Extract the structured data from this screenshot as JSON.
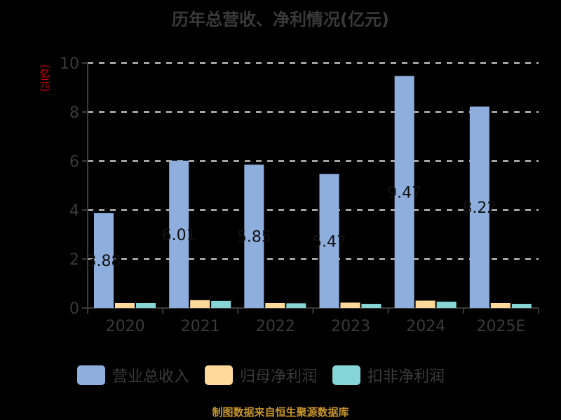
{
  "title": "历年总营收、净利情况(亿元)",
  "unit_label": "(亿元)",
  "source": "制图数据来自恒生聚源数据库",
  "colors": {
    "revenue": "#8eaedd",
    "net_profit": "#ffd99a",
    "deducted_profit": "#86d6d8",
    "grid": "#d0d0d0",
    "axis": "#3a3a3a",
    "label": "#111111"
  },
  "legend": [
    {
      "label": "营业总收入",
      "color": "#8eaedd"
    },
    {
      "label": "归母净利润",
      "color": "#ffd99a"
    },
    {
      "label": "扣非净利润",
      "color": "#86d6d8"
    }
  ],
  "chart_data": {
    "type": "bar",
    "title": "历年总营收、净利情况(亿元)",
    "xlabel": "",
    "ylabel": "(亿元)",
    "ylim": [
      0,
      10
    ],
    "yticks": [
      0,
      2,
      4,
      6,
      8,
      10
    ],
    "grid": true,
    "legend_position": "bottom",
    "categories": [
      "2020",
      "2021",
      "2022",
      "2023",
      "2024",
      "2025E"
    ],
    "series": [
      {
        "name": "营业总收入",
        "values": [
          3.88,
          6.01,
          5.85,
          5.47,
          9.47,
          8.22
        ],
        "labels": [
          "3.88",
          "6.01",
          "5.85",
          "5.47",
          "9.47",
          "8.22"
        ]
      },
      {
        "name": "归母净利润",
        "values": [
          0.2,
          0.32,
          0.2,
          0.22,
          0.3,
          0.2
        ]
      },
      {
        "name": "扣非净利润",
        "values": [
          0.2,
          0.29,
          0.19,
          0.17,
          0.26,
          0.17
        ]
      }
    ]
  }
}
